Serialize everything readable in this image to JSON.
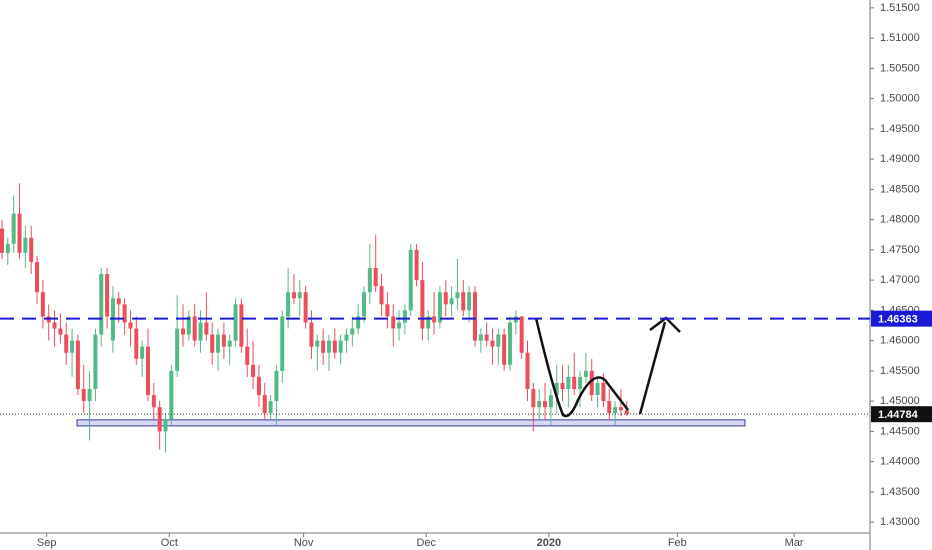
{
  "chart_data": {
    "type": "candlestick",
    "up_color": "#53b987",
    "down_color": "#eb4d5c",
    "xlim": [
      0,
      149
    ],
    "ylim": [
      1.4282,
      1.5163
    ],
    "xticks": [
      {
        "value": 8,
        "label": "Sep"
      },
      {
        "value": 29,
        "label": "Oct"
      },
      {
        "value": 52,
        "label": "Nov"
      },
      {
        "value": 73,
        "label": "Dec"
      },
      {
        "value": 94,
        "label": "2020"
      },
      {
        "value": 116,
        "label": "Feb"
      },
      {
        "value": 136,
        "label": "Mar"
      }
    ],
    "yticks": [
      {
        "value": 1.43,
        "label": "1.43000"
      },
      {
        "value": 1.435,
        "label": "1.43500"
      },
      {
        "value": 1.44,
        "label": "1.44000"
      },
      {
        "value": 1.445,
        "label": "1.44500"
      },
      {
        "value": 1.45,
        "label": "1.45000"
      },
      {
        "value": 1.455,
        "label": "1.45500"
      },
      {
        "value": 1.46,
        "label": "1.46000"
      },
      {
        "value": 1.465,
        "label": "1.46500"
      },
      {
        "value": 1.47,
        "label": "1.47000"
      },
      {
        "value": 1.475,
        "label": "1.47500"
      },
      {
        "value": 1.48,
        "label": "1.48000"
      },
      {
        "value": 1.485,
        "label": "1.48500"
      },
      {
        "value": 1.49,
        "label": "1.49000"
      },
      {
        "value": 1.495,
        "label": "1.49500"
      },
      {
        "value": 1.5,
        "label": "1.50000"
      },
      {
        "value": 1.505,
        "label": "1.50500"
      },
      {
        "value": 1.51,
        "label": "1.51000"
      },
      {
        "value": 1.515,
        "label": "1.51500"
      }
    ],
    "resistance": 1.46363,
    "resistance_color": "#1a1ad6",
    "last_price": 1.44784,
    "support_zone": [
      1.4459,
      1.4469
    ],
    "candles": [
      [
        1.4785,
        1.48,
        1.4735,
        1.4745
      ],
      [
        1.4745,
        1.477,
        1.4725,
        1.476
      ],
      [
        1.476,
        1.484,
        1.4745,
        1.481
      ],
      [
        1.481,
        1.486,
        1.4735,
        1.4745
      ],
      [
        1.4745,
        1.479,
        1.472,
        1.477
      ],
      [
        1.477,
        1.479,
        1.471,
        1.473
      ],
      [
        1.473,
        1.474,
        1.466,
        1.468
      ],
      [
        1.468,
        1.47,
        1.462,
        1.464
      ],
      [
        1.464,
        1.466,
        1.46,
        1.463
      ],
      [
        1.463,
        1.465,
        1.459,
        1.462
      ],
      [
        1.462,
        1.4645,
        1.4595,
        1.461
      ],
      [
        1.461,
        1.463,
        1.456,
        1.458
      ],
      [
        1.458,
        1.462,
        1.454,
        1.46
      ],
      [
        1.46,
        1.461,
        1.451,
        1.452
      ],
      [
        1.452,
        1.456,
        1.448,
        1.45
      ],
      [
        1.45,
        1.455,
        1.4435,
        1.452
      ],
      [
        1.452,
        1.462,
        1.45,
        1.461
      ],
      [
        1.461,
        1.472,
        1.459,
        1.471
      ],
      [
        1.471,
        1.472,
        1.462,
        1.464
      ],
      [
        1.46,
        1.469,
        1.458,
        1.467
      ],
      [
        1.467,
        1.468,
        1.463,
        1.466
      ],
      [
        1.466,
        1.467,
        1.461,
        1.463
      ],
      [
        1.463,
        1.465,
        1.459,
        1.462
      ],
      [
        1.462,
        1.464,
        1.456,
        1.457
      ],
      [
        1.457,
        1.46,
        1.454,
        1.459
      ],
      [
        1.459,
        1.462,
        1.45,
        1.451
      ],
      [
        1.451,
        1.453,
        1.447,
        1.449
      ],
      [
        1.449,
        1.45,
        1.442,
        1.445
      ],
      [
        1.445,
        1.448,
        1.4415,
        1.447
      ],
      [
        1.447,
        1.456,
        1.446,
        1.455
      ],
      [
        1.455,
        1.4675,
        1.454,
        1.462
      ],
      [
        1.462,
        1.466,
        1.459,
        1.461
      ],
      [
        1.461,
        1.465,
        1.46,
        1.464
      ],
      [
        1.464,
        1.466,
        1.459,
        1.46
      ],
      [
        1.46,
        1.465,
        1.458,
        1.463
      ],
      [
        1.463,
        1.468,
        1.46,
        1.461
      ],
      [
        1.461,
        1.463,
        1.456,
        1.458
      ],
      [
        1.458,
        1.462,
        1.455,
        1.461
      ],
      [
        1.461,
        1.463,
        1.457,
        1.459
      ],
      [
        1.459,
        1.461,
        1.456,
        1.46
      ],
      [
        1.46,
        1.467,
        1.459,
        1.466
      ],
      [
        1.466,
        1.467,
        1.458,
        1.459
      ],
      [
        1.459,
        1.462,
        1.454,
        1.456
      ],
      [
        1.456,
        1.46,
        1.452,
        1.454
      ],
      [
        1.454,
        1.456,
        1.449,
        1.451
      ],
      [
        1.451,
        1.453,
        1.447,
        1.448
      ],
      [
        1.448,
        1.451,
        1.447,
        1.45
      ],
      [
        1.45,
        1.456,
        1.446,
        1.455
      ],
      [
        1.455,
        1.465,
        1.453,
        1.464
      ],
      [
        1.464,
        1.472,
        1.462,
        1.468
      ],
      [
        1.468,
        1.471,
        1.466,
        1.467
      ],
      [
        1.467,
        1.47,
        1.464,
        1.468
      ],
      [
        1.468,
        1.469,
        1.462,
        1.463
      ],
      [
        1.463,
        1.465,
        1.457,
        1.459
      ],
      [
        1.459,
        1.461,
        1.455,
        1.46
      ],
      [
        1.46,
        1.462,
        1.456,
        1.458
      ],
      [
        1.458,
        1.461,
        1.455,
        1.46
      ],
      [
        1.46,
        1.462,
        1.457,
        1.458
      ],
      [
        1.458,
        1.461,
        1.456,
        1.46
      ],
      [
        1.46,
        1.462,
        1.458,
        1.461
      ],
      [
        1.461,
        1.464,
        1.459,
        1.462
      ],
      [
        1.462,
        1.466,
        1.461,
        1.464
      ],
      [
        1.464,
        1.469,
        1.463,
        1.468
      ],
      [
        1.468,
        1.476,
        1.466,
        1.472
      ],
      [
        1.472,
        1.4775,
        1.468,
        1.469
      ],
      [
        1.469,
        1.471,
        1.464,
        1.466
      ],
      [
        1.466,
        1.468,
        1.462,
        1.464
      ],
      [
        1.464,
        1.466,
        1.459,
        1.462
      ],
      [
        1.462,
        1.465,
        1.46,
        1.463
      ],
      [
        1.463,
        1.466,
        1.461,
        1.465
      ],
      [
        1.465,
        1.476,
        1.464,
        1.475
      ],
      [
        1.475,
        1.476,
        1.469,
        1.47
      ],
      [
        1.47,
        1.473,
        1.46,
        1.462
      ],
      [
        1.462,
        1.465,
        1.46,
        1.464
      ],
      [
        1.464,
        1.468,
        1.461,
        1.463
      ],
      [
        1.463,
        1.469,
        1.462,
        1.468
      ],
      [
        1.468,
        1.47,
        1.464,
        1.466
      ],
      [
        1.466,
        1.469,
        1.464,
        1.467
      ],
      [
        1.467,
        1.4735,
        1.465,
        1.468
      ],
      [
        1.468,
        1.47,
        1.464,
        1.465
      ],
      [
        1.465,
        1.469,
        1.463,
        1.468
      ],
      [
        1.468,
        1.469,
        1.459,
        1.46
      ],
      [
        1.46,
        1.462,
        1.458,
        1.461
      ],
      [
        1.461,
        1.463,
        1.459,
        1.46
      ],
      [
        1.46,
        1.462,
        1.456,
        1.459
      ],
      [
        1.459,
        1.462,
        1.456,
        1.461
      ],
      [
        1.461,
        1.462,
        1.455,
        1.456
      ],
      [
        1.456,
        1.464,
        1.455,
        1.463
      ],
      [
        1.463,
        1.465,
        1.461,
        1.464
      ],
      [
        1.464,
        1.464,
        1.457,
        1.458
      ],
      [
        1.458,
        1.46,
        1.45,
        1.452
      ],
      [
        1.452,
        1.453,
        1.445,
        1.449
      ],
      [
        1.449,
        1.452,
        1.447,
        1.45
      ],
      [
        1.45,
        1.453,
        1.447,
        1.449
      ],
      [
        1.449,
        1.452,
        1.446,
        1.451
      ],
      [
        1.451,
        1.456,
        1.448,
        1.453
      ],
      [
        1.453,
        1.456,
        1.45,
        1.452
      ],
      [
        1.452,
        1.456,
        1.449,
        1.454
      ],
      [
        1.454,
        1.458,
        1.451,
        1.452
      ],
      [
        1.452,
        1.455,
        1.449,
        1.454
      ],
      [
        1.454,
        1.458,
        1.453,
        1.455
      ],
      [
        1.455,
        1.457,
        1.45,
        1.451
      ],
      [
        1.451,
        1.454,
        1.449,
        1.453
      ],
      [
        1.453,
        1.4545,
        1.449,
        1.45
      ],
      [
        1.45,
        1.452,
        1.447,
        1.448
      ],
      [
        1.448,
        1.45,
        1.446,
        1.449
      ],
      [
        1.449,
        1.452,
        1.4475,
        1.4485
      ],
      [
        1.4485,
        1.45,
        1.4475,
        1.44784
      ]
    ]
  }
}
